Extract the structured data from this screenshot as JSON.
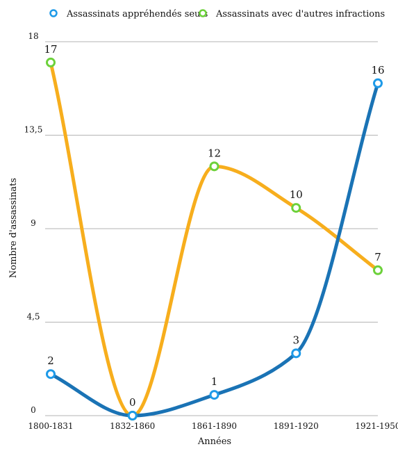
{
  "chart_data": {
    "type": "line",
    "categories": [
      "1800-1831",
      "1832-1860",
      "1861-1890",
      "1891-1920",
      "1921-1950"
    ],
    "series": [
      {
        "name": "Assassinats appréhendés seuls",
        "values": [
          2,
          0,
          1,
          3,
          16
        ],
        "line_color": "#1a73b5",
        "marker_color": "#1e9ae8"
      },
      {
        "name": "Assassinats avec d'autres infractions",
        "values": [
          17,
          0,
          12,
          10,
          7
        ],
        "line_color": "#f7ae1d",
        "marker_color": "#6cd13a"
      }
    ],
    "data_labels": [
      "2",
      "0",
      "1",
      "3",
      "16",
      "17",
      "12",
      "10",
      "7"
    ],
    "xlabel": "Années",
    "ylabel": "Nombre d'assassinats",
    "ylim": [
      0,
      18
    ],
    "yticks": [
      "0",
      "4,5",
      "9",
      "13,5",
      "18"
    ],
    "ytick_values": [
      0,
      4.5,
      9,
      13.5,
      18
    ],
    "grid": true,
    "legend_position": "top"
  }
}
